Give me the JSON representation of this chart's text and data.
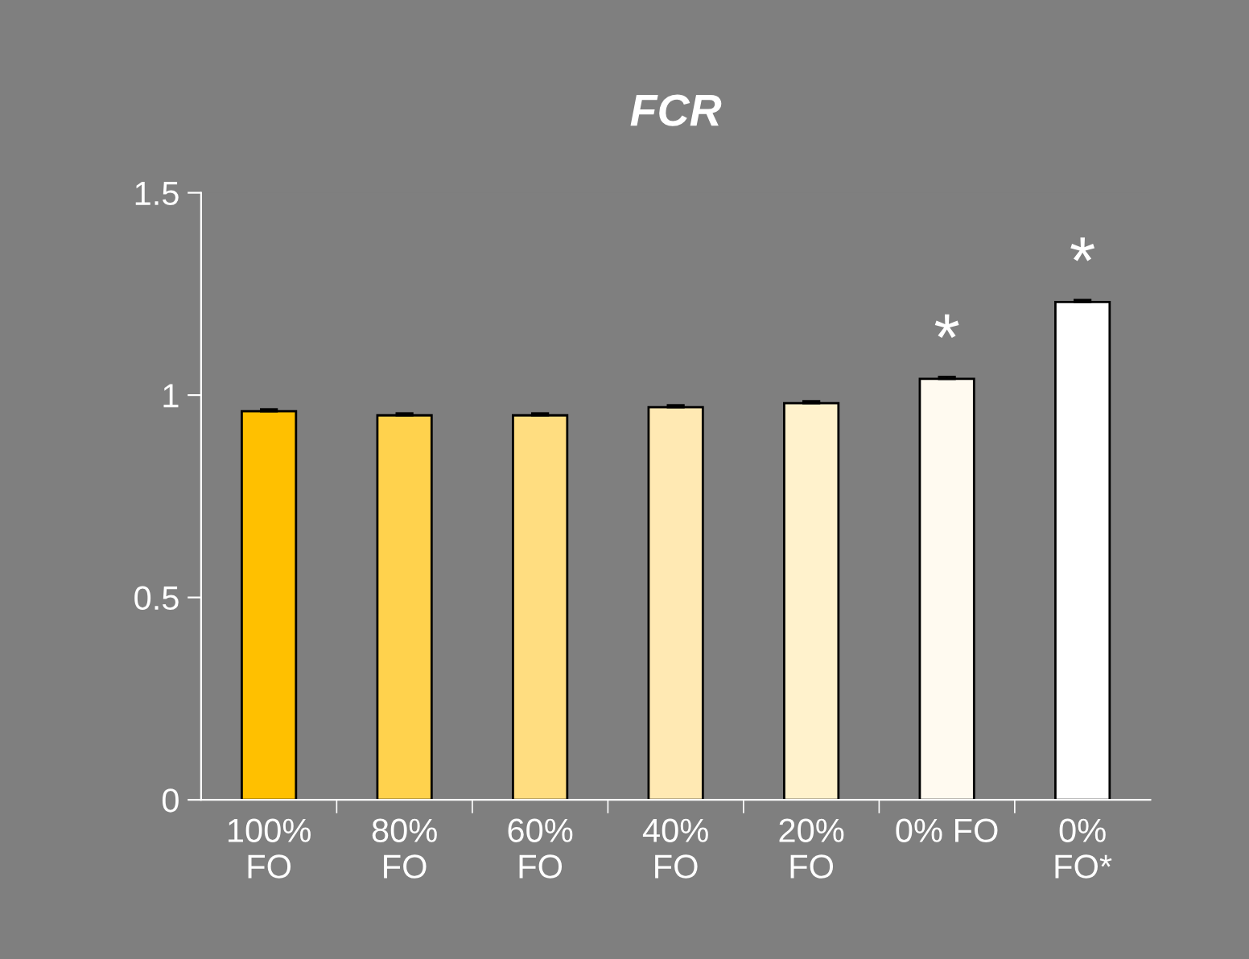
{
  "chart_data": {
    "type": "bar",
    "title": "FCR",
    "categories": [
      "100%\nFO",
      "80%\nFO",
      "60%\nFO",
      "40%\nFO",
      "20%\nFO",
      "0% FO",
      "0%\nFO*"
    ],
    "values": [
      0.96,
      0.95,
      0.95,
      0.97,
      0.98,
      1.04,
      1.23
    ],
    "errors": [
      0.005,
      0.005,
      0.005,
      0.005,
      0.005,
      0.005,
      0.005
    ],
    "colors": [
      "#ffc000",
      "#ffd24d",
      "#ffdd80",
      "#ffe9b3",
      "#fff2cc",
      "#fffaf0",
      "#ffffff"
    ],
    "ylim": [
      0,
      1.5
    ],
    "yticks": [
      0,
      0.5,
      1,
      1.5
    ],
    "grid": false,
    "legend": false,
    "annotations": [
      {
        "text": "*",
        "x": "0% FO",
        "y": 1.04
      },
      {
        "text": "*",
        "x": "0%\nFO*",
        "y": 1.23
      }
    ]
  }
}
